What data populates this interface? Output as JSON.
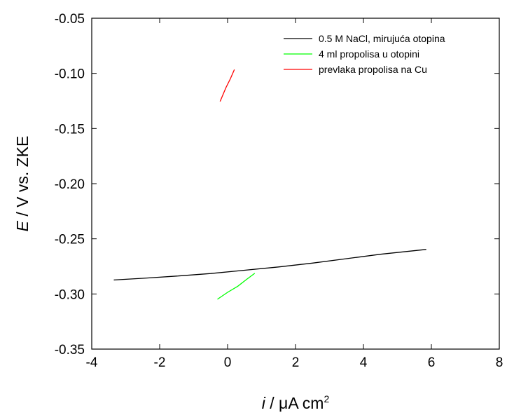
{
  "chart_data": {
    "type": "line",
    "xlabel": {
      "italic": "i",
      "rest": " / μA cm",
      "sup": "2"
    },
    "ylabel": {
      "italic": "E",
      "rest": " / V vs. ZKE"
    },
    "xlim": [
      -4,
      8
    ],
    "ylim": [
      -0.35,
      -0.05
    ],
    "x_ticks": [
      -4,
      -2,
      0,
      2,
      4,
      6,
      8
    ],
    "y_ticks": [
      -0.35,
      -0.3,
      -0.25,
      -0.2,
      -0.15,
      -0.1,
      -0.05
    ],
    "x_tick_labels": [
      "-4",
      "-2",
      "0",
      "2",
      "4",
      "6",
      "8"
    ],
    "y_tick_labels": [
      "-0.35",
      "-0.30",
      "-0.25",
      "-0.20",
      "-0.15",
      "-0.10",
      "-0.05"
    ],
    "grid": false,
    "legend_position": "top-right",
    "series": [
      {
        "name": "0.5 M NaCl, mirujuća otopina",
        "color": "#000000",
        "points": [
          [
            -3.35,
            -0.2873
          ],
          [
            -2.5,
            -0.2858
          ],
          [
            -1.5,
            -0.2838
          ],
          [
            -0.5,
            -0.2815
          ],
          [
            0.5,
            -0.2785
          ],
          [
            1.5,
            -0.2755
          ],
          [
            2.5,
            -0.272
          ],
          [
            3.5,
            -0.268
          ],
          [
            4.5,
            -0.264
          ],
          [
            5.85,
            -0.2596
          ]
        ]
      },
      {
        "name": "4 ml propolisa u otopini",
        "color": "#00ff00",
        "points": [
          [
            -0.3,
            -0.3048
          ],
          [
            0.0,
            -0.2985
          ],
          [
            0.3,
            -0.293
          ],
          [
            0.55,
            -0.287
          ],
          [
            0.8,
            -0.2813
          ]
        ]
      },
      {
        "name": "prevlaka propolisa na Cu",
        "color": "#ff0000",
        "points": [
          [
            -0.22,
            -0.1255
          ],
          [
            -0.05,
            -0.113
          ],
          [
            0.08,
            -0.105
          ],
          [
            0.2,
            -0.0965
          ]
        ]
      }
    ]
  }
}
